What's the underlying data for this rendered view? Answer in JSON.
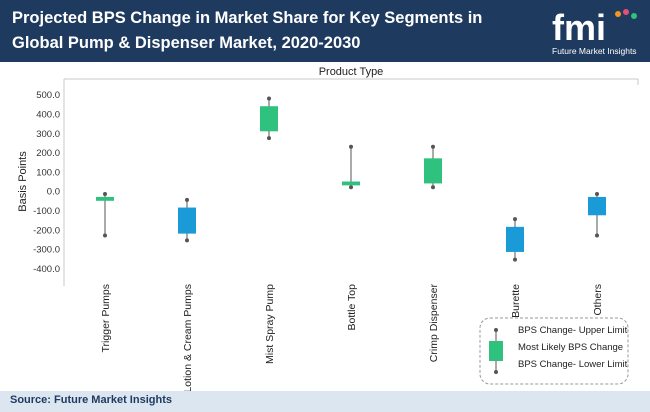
{
  "title": "Projected BPS Change in Market Share for Key Segments in Global Pump & Dispenser  Market, 2020-2030",
  "logo": {
    "text": "fmi",
    "subtitle": "Future Market Insights"
  },
  "source": "Source: Future Market Insights",
  "colors": {
    "header": "#1e3a5f",
    "green": "#2ec27e",
    "blue": "#1a9bd7"
  },
  "chart_data": {
    "type": "box",
    "xlabel": "Product Type",
    "ylabel": "Basis Points",
    "ylim": [
      -450,
      550
    ],
    "yticks": [
      "500.0",
      "400.0",
      "300.0",
      "200.0",
      "100.0",
      "0.0",
      "-100.0",
      "-200.0",
      "-300.0",
      "-400.0"
    ],
    "ytick_values": [
      500,
      400,
      300,
      200,
      100,
      0,
      -100,
      -200,
      -300,
      -400
    ],
    "categories": [
      "Trigger Pumps",
      "Lotion & Cream Pumps",
      "Mist Spray Pump",
      "Bottle Top",
      "Crimp Dispenser",
      "Burette",
      "Others"
    ],
    "items": [
      {
        "upper": -15,
        "box_top": -30,
        "box_bottom": -50,
        "lower": -230,
        "color": "green"
      },
      {
        "upper": -45,
        "box_top": -85,
        "box_bottom": -220,
        "lower": -255,
        "color": "blue"
      },
      {
        "upper": 480,
        "box_top": 440,
        "box_bottom": 310,
        "lower": 275,
        "color": "green"
      },
      {
        "upper": 230,
        "box_top": 50,
        "box_bottom": 30,
        "lower": 20,
        "color": "green"
      },
      {
        "upper": 230,
        "box_top": 170,
        "box_bottom": 40,
        "lower": 20,
        "color": "green"
      },
      {
        "upper": -145,
        "box_top": -185,
        "box_bottom": -315,
        "lower": -355,
        "color": "blue"
      },
      {
        "upper": -15,
        "box_top": -30,
        "box_bottom": -125,
        "lower": -230,
        "color": "blue"
      }
    ],
    "legend": {
      "position": "bottom-right",
      "entries": [
        "BPS Change- Upper Limit",
        "Most Likely BPS Change",
        "BPS Change- Lower Limit"
      ]
    }
  }
}
